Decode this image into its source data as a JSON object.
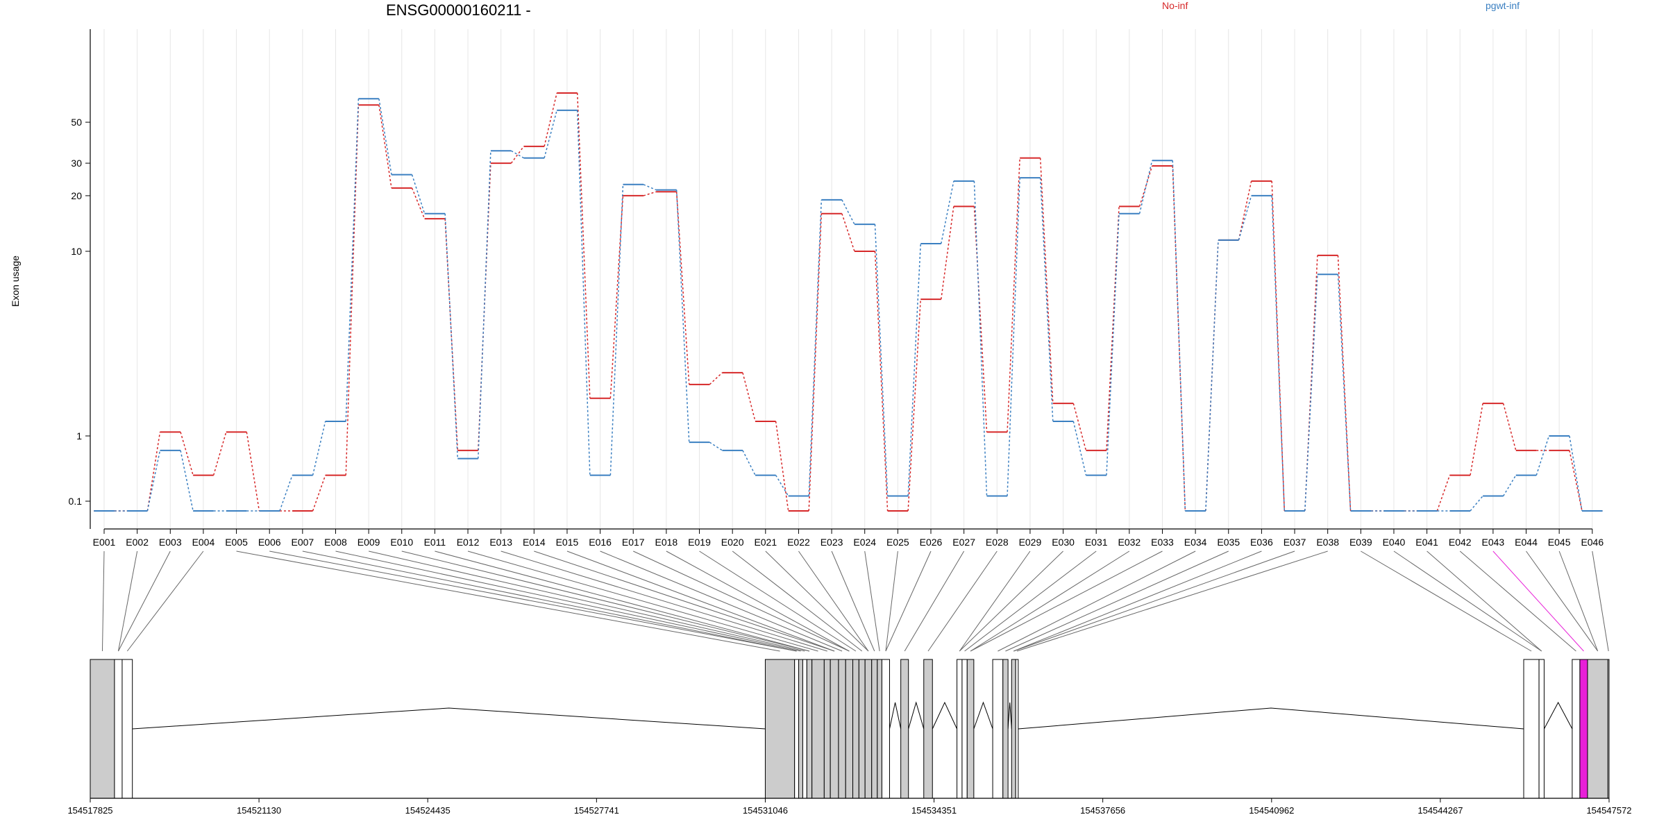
{
  "chart_data": {
    "type": "line",
    "title": "ENSG00000160211 -",
    "ylabel": "Exon usage",
    "yscale": "log",
    "yticks": [
      "0.1",
      "1",
      "10",
      "20",
      "30",
      "50"
    ],
    "yticks_val": [
      0.1,
      1,
      10,
      20,
      30,
      50
    ],
    "grid": "vertical",
    "legend": "top",
    "categories": [
      "E001",
      "E002",
      "E003",
      "E004",
      "E005",
      "E006",
      "E007",
      "E008",
      "E009",
      "E010",
      "E011",
      "E012",
      "E013",
      "E014",
      "E015",
      "E016",
      "E017",
      "E018",
      "E019",
      "E020",
      "E021",
      "E022",
      "E023",
      "E024",
      "E025",
      "E026",
      "E027",
      "E028",
      "E029",
      "E030",
      "E031",
      "E032",
      "E033",
      "E034",
      "E035",
      "E036",
      "E037",
      "E038",
      "E039",
      "E040",
      "E041",
      "E042",
      "E043",
      "E044",
      "E045",
      "E046"
    ],
    "series": [
      {
        "name": "No-inf",
        "color": "#d62728",
        "values": [
          0,
          0,
          1.05,
          0.25,
          1.05,
          0,
          0,
          0.25,
          62,
          22,
          15,
          0.6,
          30,
          37,
          72,
          1.6,
          20,
          21,
          1.9,
          2.2,
          1.2,
          0,
          16,
          10,
          0,
          5.5,
          17.5,
          1.05,
          32,
          1.5,
          0.6,
          17.5,
          29,
          0,
          11.5,
          24,
          0,
          9.5,
          0,
          0,
          0,
          0.25,
          1.5,
          0.6,
          0.6,
          0
        ]
      },
      {
        "name": "pgwt-inf",
        "color": "#3a7fc1",
        "values": [
          0,
          0,
          0.6,
          0,
          0,
          0,
          0.25,
          1.2,
          67,
          26,
          16,
          0.45,
          35,
          32,
          58,
          0.25,
          23,
          21.5,
          0.8,
          0.6,
          0.25,
          0.12,
          19,
          14,
          0.12,
          11,
          24,
          0.12,
          25,
          1.2,
          0.25,
          16,
          31,
          0,
          11.5,
          20,
          0,
          7.5,
          0,
          0,
          0,
          0,
          0.12,
          0.25,
          1.0,
          0
        ]
      }
    ],
    "genomic_ticks": [
      "154517825",
      "154521130",
      "154524435",
      "154527741",
      "154531046",
      "154534351",
      "154537656",
      "154540962",
      "154544267",
      "154547572"
    ],
    "highlight_exon": "E043"
  },
  "gene_model": {
    "span": [
      154517825,
      154547572
    ],
    "exons": [
      {
        "s": 154517825,
        "e": 154518300,
        "fill": "gray"
      },
      {
        "s": 154518300,
        "e": 154518450,
        "fill": "white"
      },
      {
        "s": 154518450,
        "e": 154518650,
        "fill": "white"
      },
      {
        "s": 154531046,
        "e": 154531620,
        "fill": "gray"
      },
      {
        "s": 154531620,
        "e": 154531700,
        "fill": "white"
      },
      {
        "s": 154531700,
        "e": 154531780,
        "fill": "gray"
      },
      {
        "s": 154531780,
        "e": 154531860,
        "fill": "white"
      },
      {
        "s": 154531860,
        "e": 154531960,
        "fill": "gray"
      },
      {
        "s": 154531960,
        "e": 154532200,
        "fill": "gray"
      },
      {
        "s": 154532200,
        "e": 154532320,
        "fill": "gray"
      },
      {
        "s": 154532320,
        "e": 154532480,
        "fill": "gray"
      },
      {
        "s": 154532480,
        "e": 154532620,
        "fill": "gray"
      },
      {
        "s": 154532620,
        "e": 154532760,
        "fill": "gray"
      },
      {
        "s": 154532760,
        "e": 154532880,
        "fill": "gray"
      },
      {
        "s": 154532880,
        "e": 154533000,
        "fill": "gray"
      },
      {
        "s": 154533000,
        "e": 154533130,
        "fill": "gray"
      },
      {
        "s": 154533130,
        "e": 154533240,
        "fill": "gray"
      },
      {
        "s": 154533240,
        "e": 154533330,
        "fill": "gray"
      },
      {
        "s": 154533330,
        "e": 154533480,
        "fill": "white"
      },
      {
        "s": 154533700,
        "e": 154533850,
        "fill": "gray"
      },
      {
        "s": 154534150,
        "e": 154534320,
        "fill": "gray"
      },
      {
        "s": 154534800,
        "e": 154534900,
        "fill": "white"
      },
      {
        "s": 154534900,
        "e": 154535000,
        "fill": "white"
      },
      {
        "s": 154535000,
        "e": 154535130,
        "fill": "gray"
      },
      {
        "s": 154535500,
        "e": 154535700,
        "fill": "white"
      },
      {
        "s": 154535700,
        "e": 154535800,
        "fill": "gray"
      },
      {
        "s": 154535870,
        "e": 154535950,
        "fill": "gray"
      },
      {
        "s": 154535950,
        "e": 154536000,
        "fill": "white"
      },
      {
        "s": 154545900,
        "e": 154546200,
        "fill": "white"
      },
      {
        "s": 154546200,
        "e": 154546300,
        "fill": "white"
      },
      {
        "s": 154546850,
        "e": 154547000,
        "fill": "white"
      },
      {
        "s": 154547000,
        "e": 154547150,
        "fill": "magenta"
      },
      {
        "s": 154547150,
        "e": 154547550,
        "fill": "gray"
      },
      {
        "s": 154547550,
        "e": 154547572,
        "fill": "white"
      }
    ]
  },
  "colors": {
    "no_inf": "#d62728",
    "pgwt_inf": "#3a7fc1",
    "highlight": "#e820d8",
    "exon_gray": "#cccccc",
    "grid": "#e6e6e6"
  }
}
